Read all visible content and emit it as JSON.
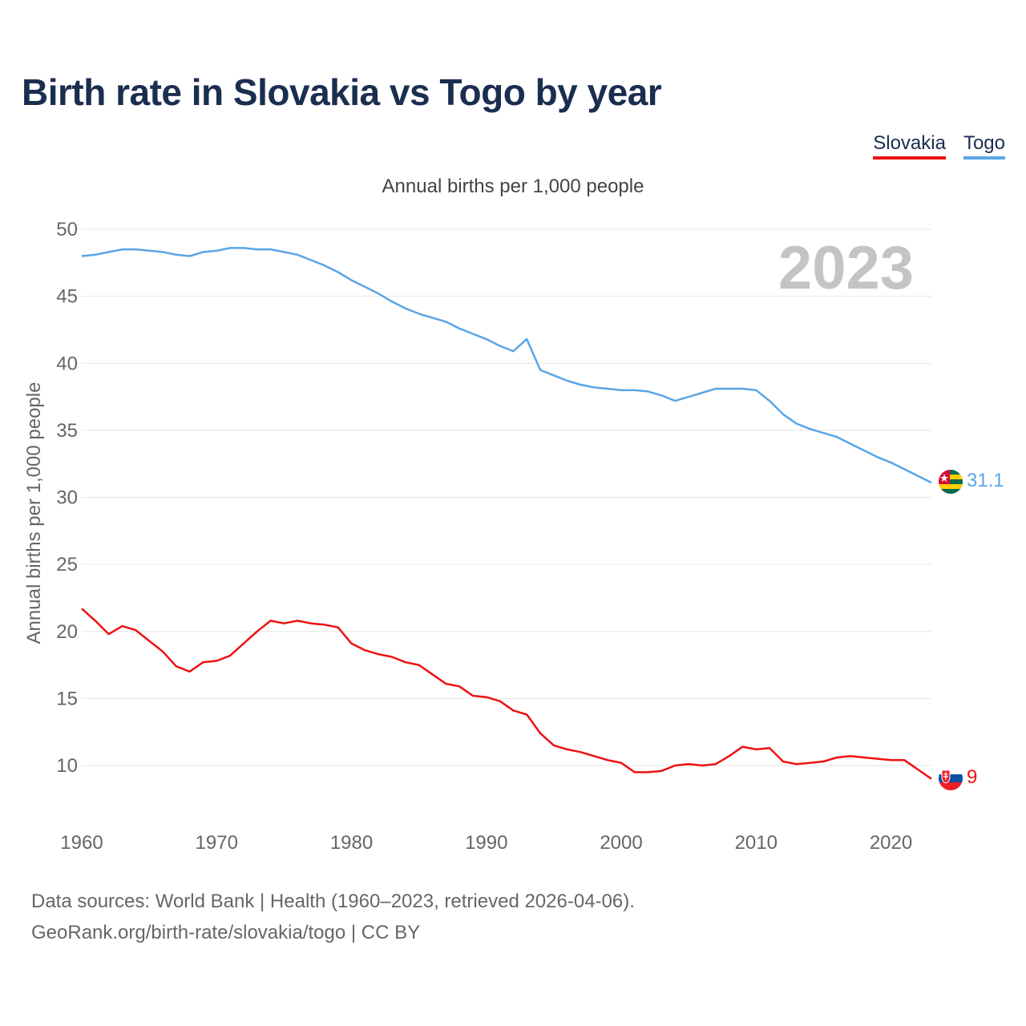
{
  "title": "Birth rate in Slovakia vs Togo by year",
  "legend": [
    {
      "label": "Slovakia",
      "color": "#ee1111"
    },
    {
      "label": "Togo",
      "color": "#5aa5e6"
    }
  ],
  "footer": {
    "line1": "Data sources: World Bank | Health (1960–2023, retrieved 2026-04-06).",
    "line2": "GeoRank.org/birth-rate/slovakia/togo | CC BY"
  },
  "chart_data": {
    "type": "line",
    "subtitle": "Annual births per 1,000 people",
    "ylabel": "Annual births per 1,000 people",
    "year_watermark": "2023",
    "xlim": [
      1960,
      2023
    ],
    "ylim": [
      5,
      50
    ],
    "yticks": [
      10,
      15,
      20,
      25,
      30,
      35,
      40,
      45,
      50
    ],
    "xticks": [
      1960,
      1970,
      1980,
      1990,
      2000,
      2010,
      2020
    ],
    "x": [
      1960,
      1961,
      1962,
      1963,
      1964,
      1965,
      1966,
      1967,
      1968,
      1969,
      1970,
      1971,
      1972,
      1973,
      1974,
      1975,
      1976,
      1977,
      1978,
      1979,
      1980,
      1981,
      1982,
      1983,
      1984,
      1985,
      1986,
      1987,
      1988,
      1989,
      1990,
      1991,
      1992,
      1993,
      1994,
      1995,
      1996,
      1997,
      1998,
      1999,
      2000,
      2001,
      2002,
      2003,
      2004,
      2005,
      2006,
      2007,
      2008,
      2009,
      2010,
      2011,
      2012,
      2013,
      2014,
      2015,
      2016,
      2017,
      2018,
      2019,
      2020,
      2021,
      2022,
      2023
    ],
    "series": [
      {
        "name": "Togo",
        "color": "#5aa5e6",
        "end_label": "31.1",
        "values": [
          48.0,
          48.1,
          48.3,
          48.5,
          48.5,
          48.4,
          48.3,
          48.1,
          48.0,
          48.3,
          48.4,
          48.6,
          48.6,
          48.5,
          48.5,
          48.3,
          48.1,
          47.7,
          47.3,
          46.8,
          46.2,
          45.7,
          45.2,
          44.6,
          44.1,
          43.7,
          43.4,
          43.1,
          42.6,
          42.2,
          41.8,
          41.3,
          40.9,
          41.8,
          39.5,
          39.1,
          38.7,
          38.4,
          38.2,
          38.1,
          38.0,
          38.0,
          37.9,
          37.6,
          37.2,
          37.5,
          37.8,
          38.1,
          38.1,
          38.1,
          38.0,
          37.2,
          36.2,
          35.5,
          35.1,
          34.8,
          34.5,
          34.0,
          33.5,
          33.0,
          32.6,
          32.1,
          31.6,
          31.1
        ]
      },
      {
        "name": "Slovakia",
        "color": "#ee1111",
        "end_label": "9",
        "values": [
          21.7,
          20.8,
          19.8,
          20.4,
          20.1,
          19.3,
          18.5,
          17.4,
          17.0,
          17.7,
          17.8,
          18.2,
          19.1,
          20.0,
          20.8,
          20.6,
          20.8,
          20.6,
          20.5,
          20.3,
          19.1,
          18.6,
          18.3,
          18.1,
          17.7,
          17.5,
          16.8,
          16.1,
          15.9,
          15.2,
          15.1,
          14.8,
          14.1,
          13.8,
          12.4,
          11.5,
          11.2,
          11.0,
          10.7,
          10.4,
          10.2,
          9.5,
          9.5,
          9.6,
          10.0,
          10.1,
          10.0,
          10.1,
          10.7,
          11.4,
          11.2,
          11.3,
          10.3,
          10.1,
          10.2,
          10.3,
          10.6,
          10.7,
          10.6,
          10.5,
          10.4,
          10.4,
          9.7,
          9.0
        ]
      }
    ]
  }
}
